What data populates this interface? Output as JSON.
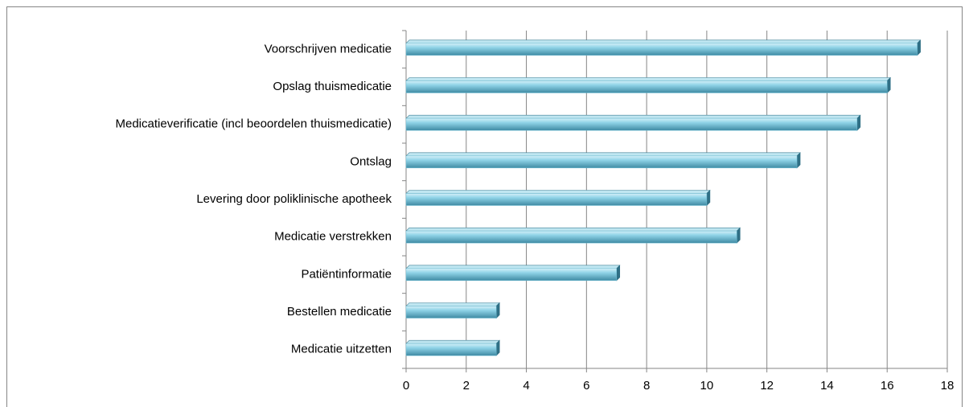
{
  "chart_data": {
    "type": "bar",
    "orientation": "horizontal",
    "categories": [
      "Voorschrijven medicatie",
      "Opslag thuismedicatie",
      "Medicatieverificatie (incl beoordelen thuismedicatie)",
      "Ontslag",
      "Levering door poliklinische apotheek",
      "Medicatie verstrekken",
      "Patiëntinformatie",
      "Bestellen medicatie",
      "Medicatie uitzetten"
    ],
    "values": [
      17,
      16,
      15,
      13,
      10,
      11,
      7,
      3,
      3
    ],
    "color": "#74c3da",
    "xlim": [
      0,
      18
    ],
    "xticks": [
      0,
      2,
      4,
      6,
      8,
      10,
      12,
      14,
      16,
      18
    ],
    "grid": true
  }
}
